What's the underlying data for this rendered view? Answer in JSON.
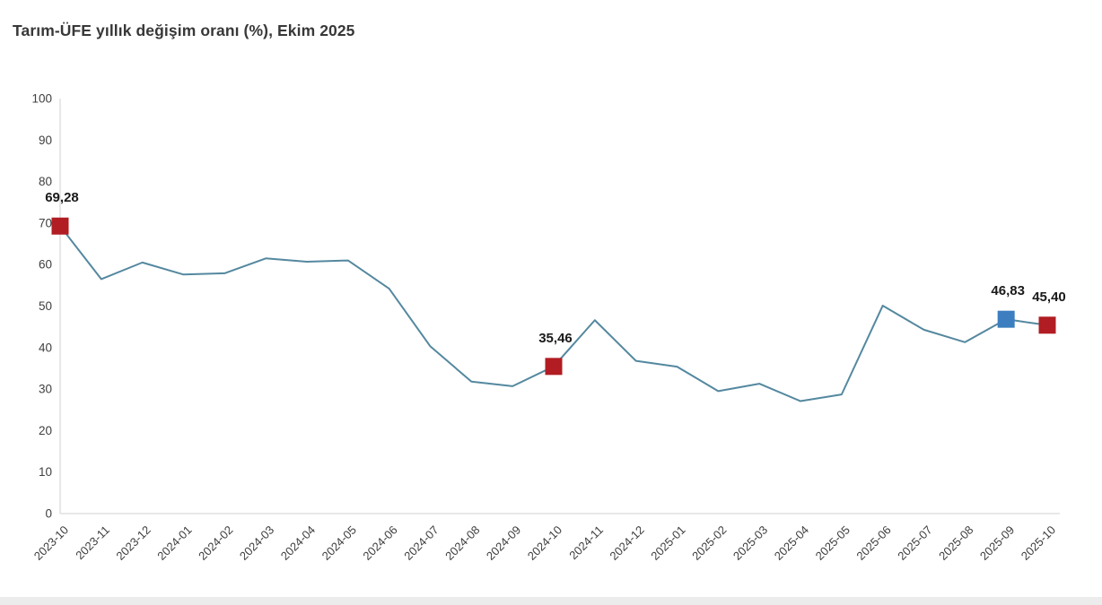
{
  "header": {
    "title": "Tarım-ÜFE yıllık değişim oranı (%), Ekim 2025"
  },
  "chart_data": {
    "type": "line",
    "title": "Tarım-ÜFE yıllık değişim oranı (%), Ekim 2025",
    "xlabel": "",
    "ylabel": "",
    "x": [
      "2023-10",
      "2023-11",
      "2023-12",
      "2024-01",
      "2024-02",
      "2024-03",
      "2024-04",
      "2024-05",
      "2024-06",
      "2024-07",
      "2024-08",
      "2024-09",
      "2024-10",
      "2024-11",
      "2024-12",
      "2025-01",
      "2025-02",
      "2025-03",
      "2025-04",
      "2025-05",
      "2025-06",
      "2025-07",
      "2025-08",
      "2025-09",
      "2025-10"
    ],
    "values": [
      69.28,
      56.5,
      60.5,
      57.6,
      57.9,
      61.5,
      60.7,
      61.0,
      54.2,
      40.3,
      31.8,
      30.7,
      35.46,
      46.6,
      36.8,
      35.4,
      29.5,
      31.3,
      27.1,
      28.7,
      50.1,
      44.3,
      41.3,
      46.83,
      45.4
    ],
    "ylim": [
      0,
      100
    ],
    "y_ticks": [
      0,
      10,
      20,
      30,
      40,
      50,
      60,
      70,
      80,
      90,
      100
    ],
    "grid": false,
    "legend_position": "none",
    "line_color": "#54889f",
    "axis_color": "#d9d9d9",
    "tick_label_color": "#404040",
    "point_label_color": "#1a1a1a",
    "highlighted_points": [
      {
        "x": "2023-10",
        "value": 69.28,
        "label": "69,28",
        "color": "#b11d22"
      },
      {
        "x": "2024-10",
        "value": 35.46,
        "label": "35,46",
        "color": "#b11d22"
      },
      {
        "x": "2025-09",
        "value": 46.83,
        "label": "46,83",
        "color": "#3c7ec0"
      },
      {
        "x": "2025-10",
        "value": 45.4,
        "label": "45,40",
        "color": "#b11d22"
      }
    ]
  }
}
